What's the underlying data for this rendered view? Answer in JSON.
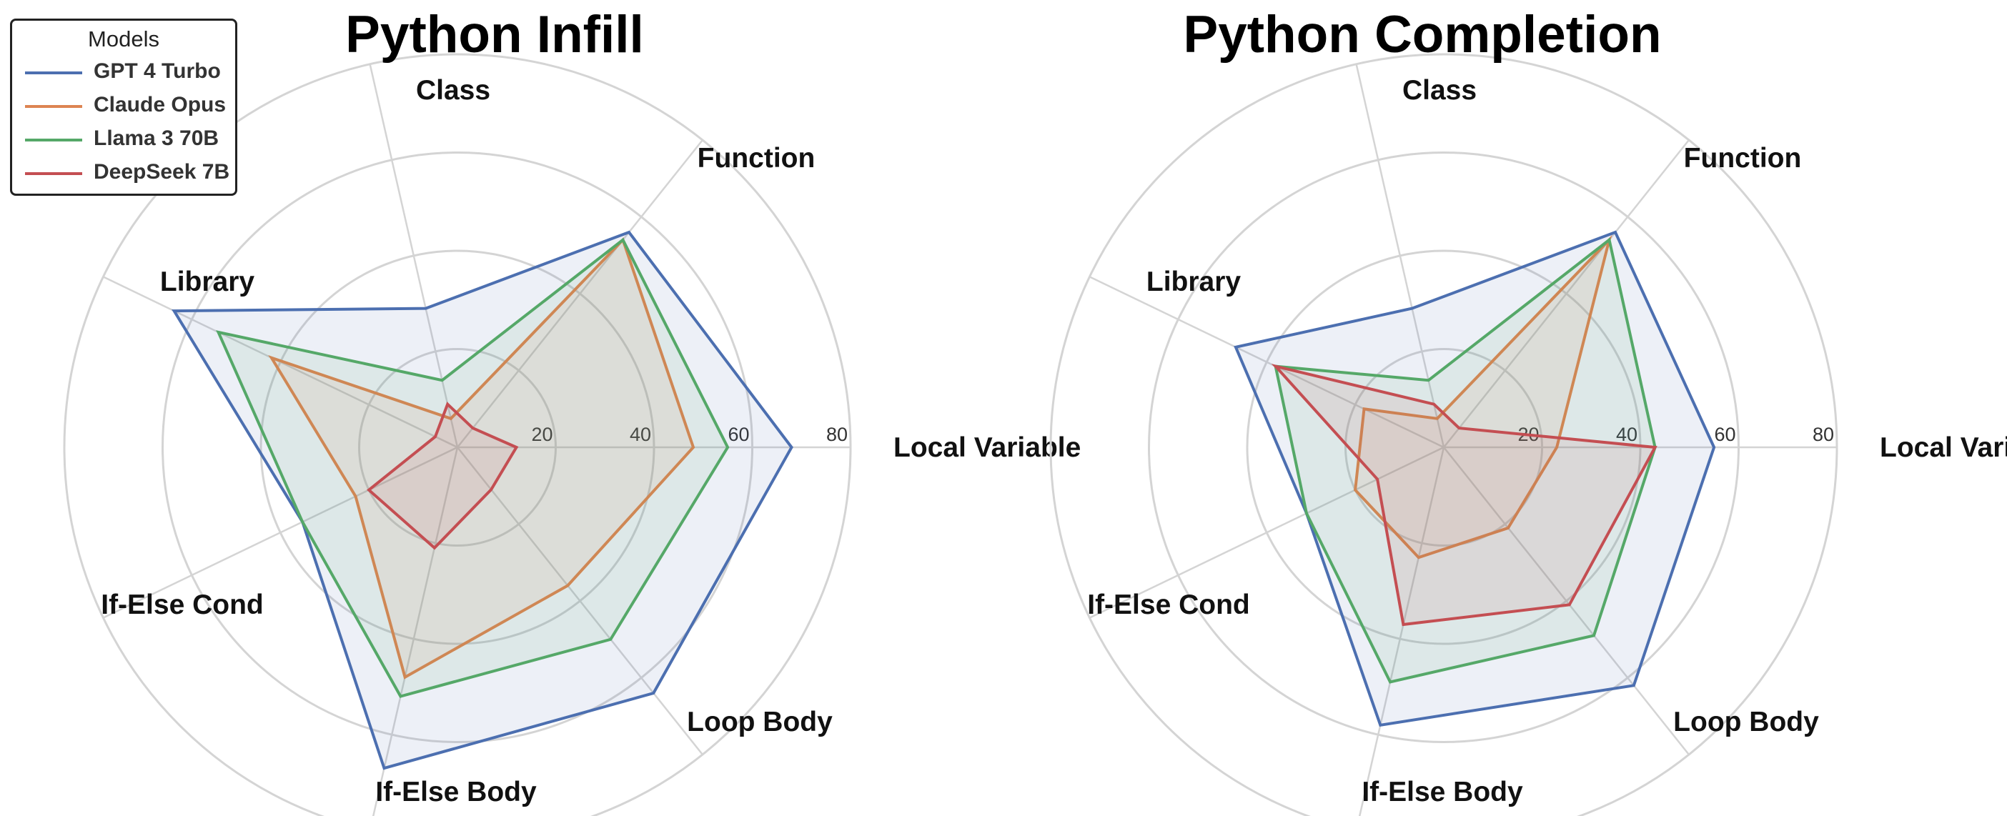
{
  "legend": {
    "title": "Models",
    "items": [
      {
        "label": "GPT 4 Turbo",
        "color": "#4c6fb0"
      },
      {
        "label": "Claude Opus",
        "color": "#dd8452"
      },
      {
        "label": "Llama 3 70B",
        "color": "#55a868"
      },
      {
        "label": "DeepSeek 7B",
        "color": "#c44e52"
      }
    ]
  },
  "chart_data": [
    {
      "type": "radar",
      "title": "Python Infill",
      "axes": [
        "Local Variable",
        "Function",
        "Class",
        "Library",
        "If-Else Cond",
        "If-Else Body",
        "Loop Body"
      ],
      "rticks": [
        20,
        40,
        60,
        80
      ],
      "rlim": [
        0,
        80
      ],
      "grid": true,
      "series": [
        {
          "name": "GPT 4 Turbo",
          "color": "#4c6fb0",
          "values": [
            68,
            56,
            29,
            64,
            35,
            67,
            64
          ]
        },
        {
          "name": "Claude Opus",
          "color": "#dd8452",
          "values": [
            48,
            54,
            6,
            42,
            23,
            48,
            36
          ]
        },
        {
          "name": "Llama 3 70B",
          "color": "#55a868",
          "values": [
            55,
            54,
            14,
            54,
            35,
            52,
            50
          ]
        },
        {
          "name": "DeepSeek 7B",
          "color": "#c44e52",
          "values": [
            12,
            5,
            9,
            5,
            20,
            21,
            11
          ]
        }
      ]
    },
    {
      "type": "radar",
      "title": "Python Completion",
      "axes": [
        "Local Variable",
        "Function",
        "Class",
        "Library",
        "If-Else Cond",
        "If-Else Body",
        "Loop Body"
      ],
      "rticks": [
        20,
        40,
        60,
        80
      ],
      "rlim": [
        0,
        80
      ],
      "grid": true,
      "series": [
        {
          "name": "GPT 4 Turbo",
          "color": "#4c6fb0",
          "values": [
            55,
            56,
            29,
            47,
            31,
            58,
            62
          ]
        },
        {
          "name": "Claude Opus",
          "color": "#dd8452",
          "values": [
            23,
            54,
            6,
            18,
            20,
            23,
            21
          ]
        },
        {
          "name": "Llama 3 70B",
          "color": "#55a868",
          "values": [
            43,
            54,
            14,
            38,
            31,
            49,
            49
          ]
        },
        {
          "name": "DeepSeek 7B",
          "color": "#c44e52",
          "values": [
            43,
            5,
            9,
            38,
            15,
            37,
            41
          ]
        }
      ]
    }
  ]
}
